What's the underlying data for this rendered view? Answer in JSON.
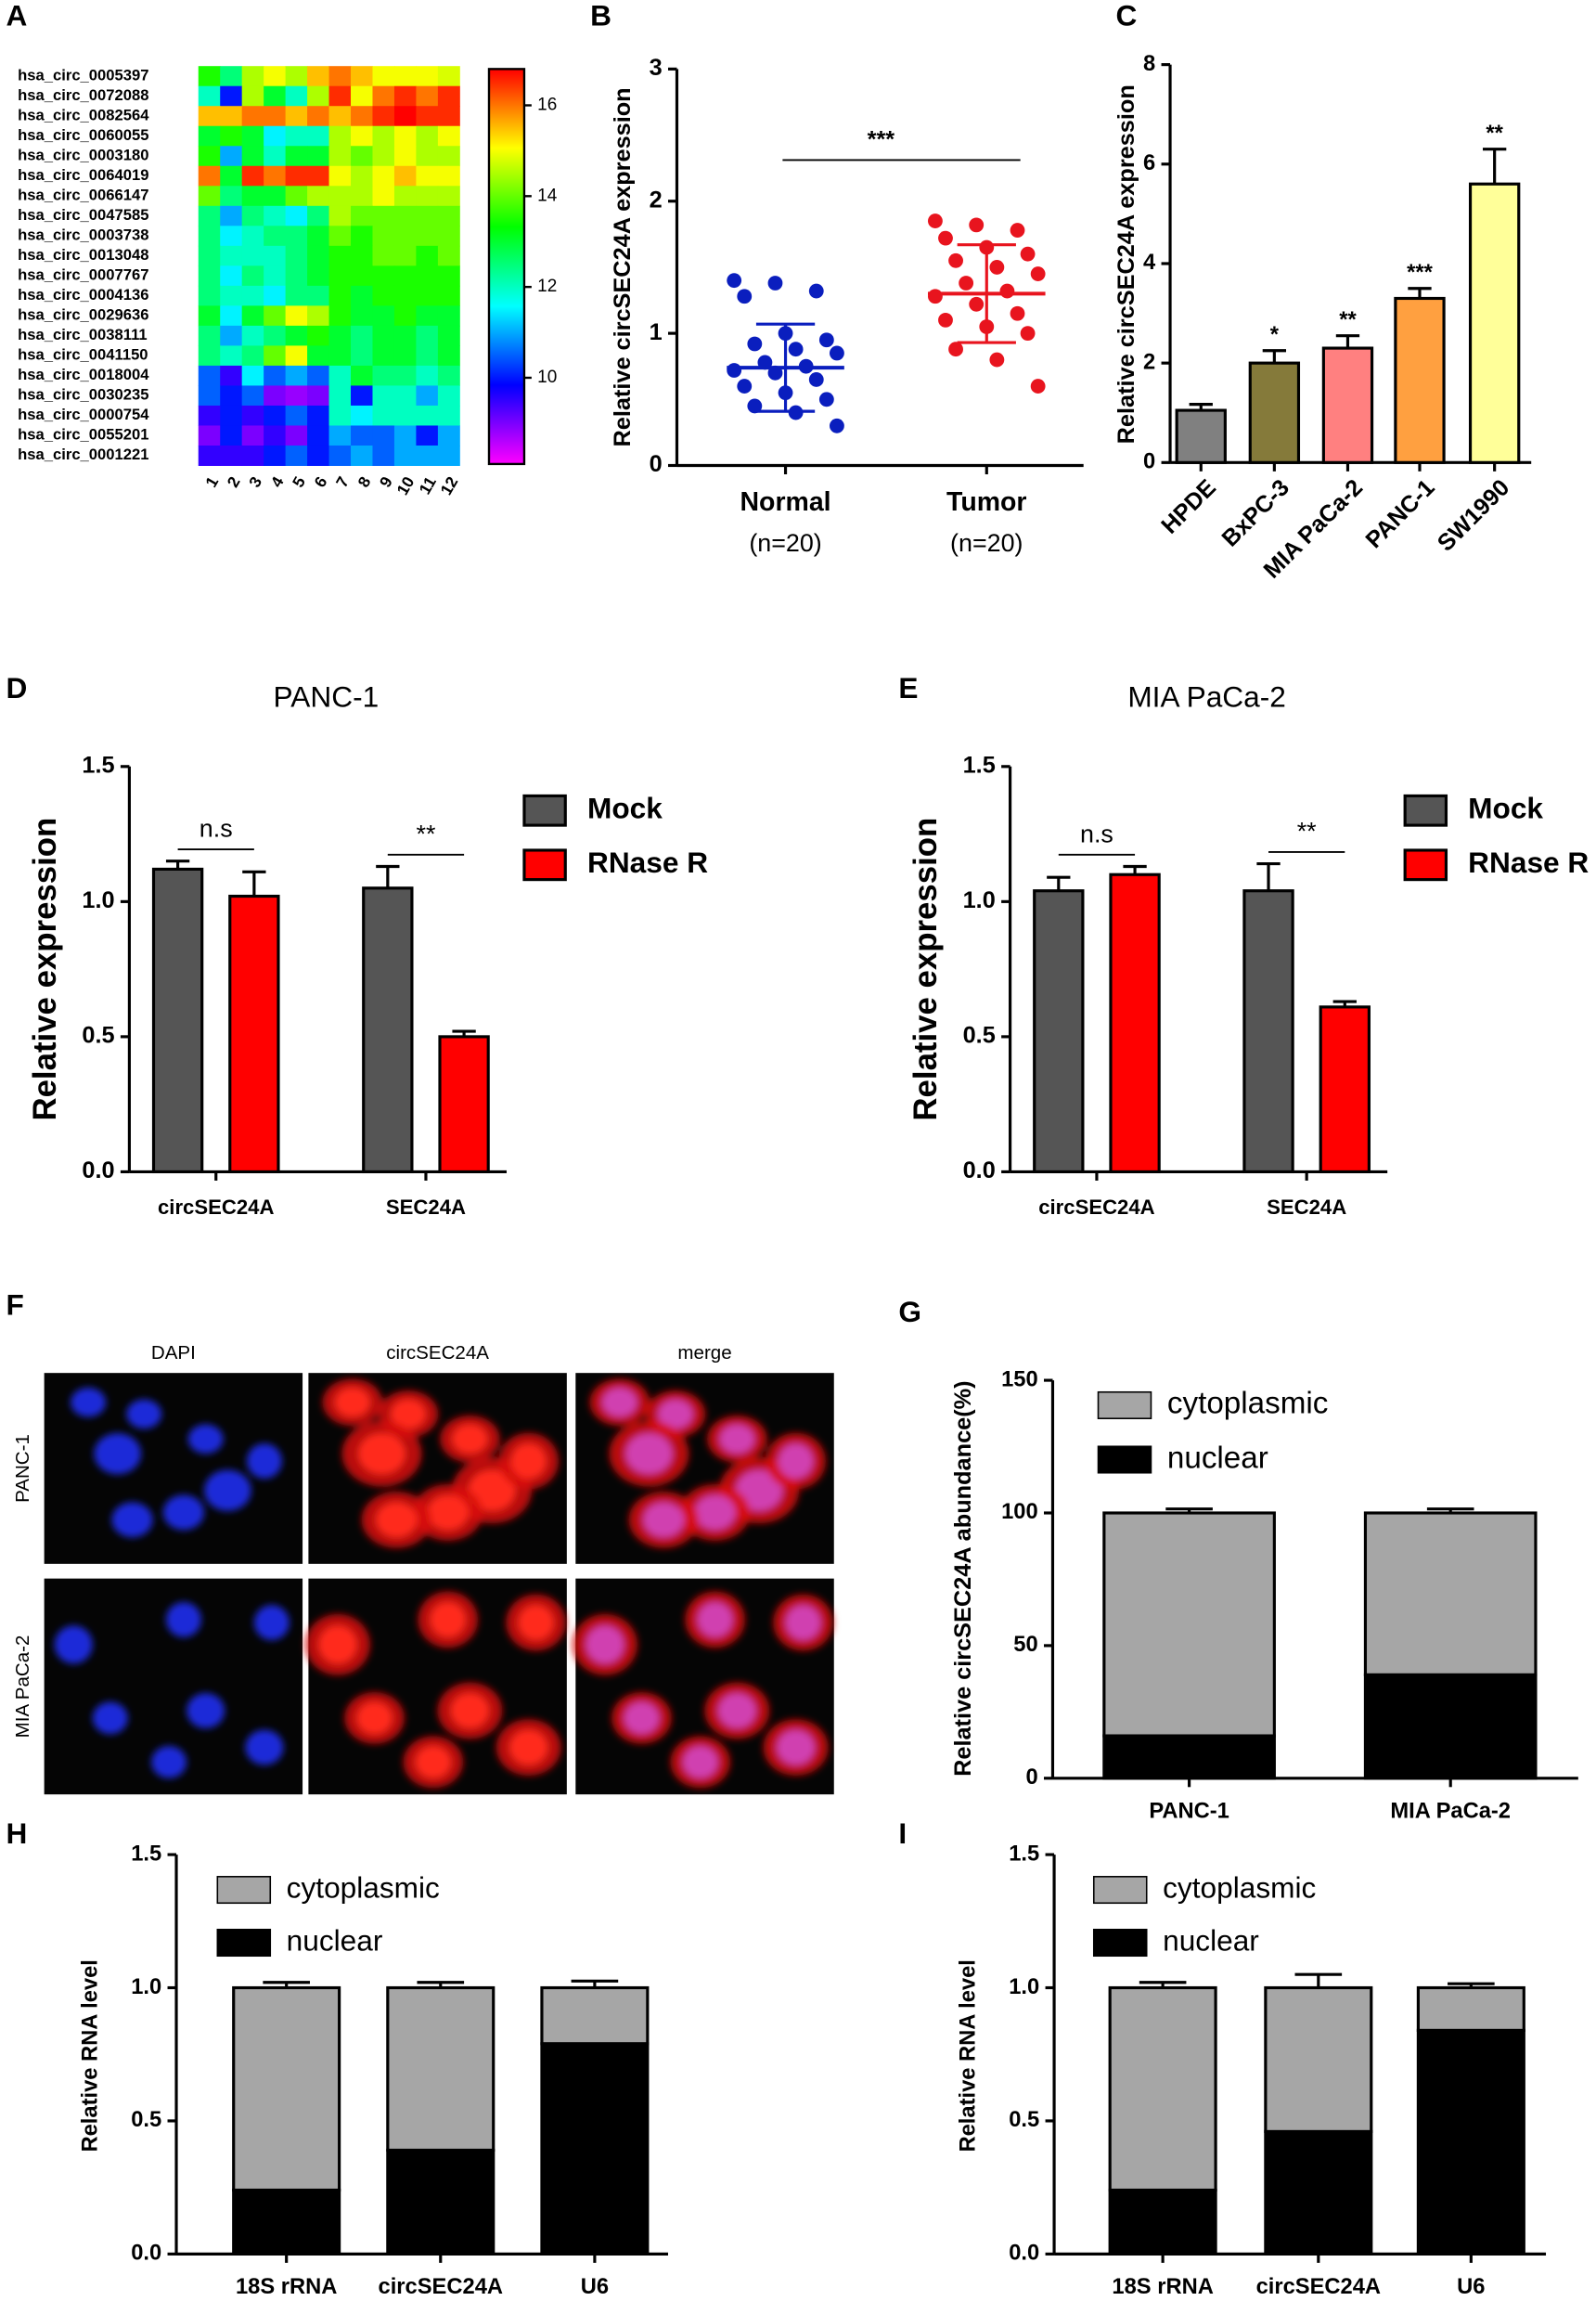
{
  "chart_data": [
    {
      "type": "heatmap",
      "panel": "A",
      "rows": [
        "hsa_circ_0005397",
        "hsa_circ_0072088",
        "hsa_circ_0082564",
        "hsa_circ_0060055",
        "hsa_circ_0003180",
        "hsa_circ_0064019",
        "hsa_circ_0066147",
        "hsa_circ_0047585",
        "hsa_circ_0003738",
        "hsa_circ_0013048",
        "hsa_circ_0007767",
        "hsa_circ_0004136",
        "hsa_circ_0029636",
        "hsa_circ_0038111",
        "hsa_circ_0041150",
        "hsa_circ_0018004",
        "hsa_circ_0030235",
        "hsa_circ_0000754",
        "hsa_circ_0055201",
        "hsa_circ_0001221"
      ],
      "columns": [
        "1",
        "2",
        "3",
        "4",
        "5",
        "6",
        "7",
        "8",
        "9",
        "10",
        "11",
        "12"
      ],
      "values": [
        [
          13.5,
          12.5,
          14.5,
          15,
          14.5,
          15.5,
          16,
          15.5,
          15,
          15,
          15,
          14.8
        ],
        [
          12,
          10,
          14.5,
          13,
          12,
          14.5,
          16.5,
          15,
          16,
          16.5,
          16,
          16.5
        ],
        [
          15.5,
          15.5,
          16,
          16,
          15.5,
          16,
          15.5,
          16,
          16.5,
          16.8,
          16.5,
          16.5
        ],
        [
          13,
          13.5,
          13,
          11.5,
          12,
          12,
          14.5,
          15,
          14.5,
          15,
          14.5,
          15
        ],
        [
          13.5,
          11,
          13,
          12,
          13,
          13,
          14.5,
          14,
          14.5,
          15,
          14.5,
          14.5
        ],
        [
          16,
          13,
          16.5,
          16,
          16.5,
          16.5,
          15,
          14.5,
          15,
          15.5,
          15,
          15
        ],
        [
          14,
          12.5,
          13,
          13,
          14,
          14.5,
          14.5,
          14.5,
          15,
          14.5,
          14.5,
          14.5
        ],
        [
          12.5,
          11,
          12.5,
          12,
          11.5,
          12.5,
          14.5,
          14,
          14,
          14,
          14,
          14
        ],
        [
          12.5,
          11.5,
          12,
          12.5,
          12.5,
          13,
          14,
          13.5,
          14,
          14,
          14,
          14
        ],
        [
          12.5,
          12,
          12,
          12,
          12.5,
          13,
          13.5,
          13.5,
          14,
          14,
          13.5,
          14
        ],
        [
          12.5,
          11.5,
          12.5,
          12,
          12.5,
          13,
          13.5,
          13.5,
          13.5,
          13.5,
          13.5,
          13.5
        ],
        [
          12.5,
          12,
          12,
          11.5,
          12.5,
          12.5,
          13.5,
          13,
          13.5,
          13.5,
          13.5,
          13.5
        ],
        [
          13,
          11.5,
          13,
          14,
          15,
          14.5,
          13.5,
          13,
          13,
          13.5,
          13,
          13
        ],
        [
          12.5,
          11,
          12,
          12.5,
          13,
          13.5,
          13,
          12.5,
          13,
          13,
          12.5,
          13
        ],
        [
          12.5,
          12,
          12.5,
          14,
          15,
          13,
          13,
          12.5,
          13,
          13,
          12.5,
          13
        ],
        [
          10.5,
          9.5,
          11.5,
          10.5,
          11,
          10.5,
          12,
          13,
          12.5,
          12.5,
          12,
          12.5
        ],
        [
          10.5,
          10,
          10.5,
          9,
          8.8,
          9,
          12,
          10,
          12,
          12,
          11,
          12
        ],
        [
          9.5,
          10,
          9.5,
          10,
          10.5,
          10,
          12,
          11.5,
          12,
          12,
          12,
          12
        ],
        [
          9,
          10,
          9,
          9.5,
          9,
          10,
          11,
          10.5,
          10.5,
          11,
          10,
          11
        ],
        [
          9.5,
          9.5,
          9.5,
          10,
          10.5,
          10,
          10.5,
          11,
          10.5,
          11,
          11,
          11
        ]
      ],
      "colormap": [
        "#ff00ff",
        "#0000ff",
        "#00ffff",
        "#00ff00",
        "#ffff00",
        "#ff0000"
      ],
      "zlim": [
        8.1,
        16.8
      ],
      "zticks": [
        10,
        12,
        14,
        16
      ]
    },
    {
      "type": "scatter",
      "panel": "B",
      "ylabel": "Relative circSEC24A expression",
      "categories": [
        "Normal",
        "Tumor"
      ],
      "category_notes": [
        "(n=20)",
        "(n=20)"
      ],
      "series": [
        {
          "color": "#0a1ebe",
          "values": [
            1.4,
            1.38,
            1.32,
            1.28,
            1.0,
            0.95,
            0.92,
            0.88,
            0.85,
            0.78,
            0.75,
            0.72,
            0.7,
            0.65,
            0.6,
            0.55,
            0.5,
            0.45,
            0.4,
            0.3
          ],
          "mean": 0.74,
          "sd": 0.33
        },
        {
          "color": "#e8141e",
          "values": [
            1.85,
            1.82,
            1.78,
            1.72,
            1.65,
            1.6,
            1.55,
            1.5,
            1.45,
            1.38,
            1.32,
            1.28,
            1.22,
            1.15,
            1.1,
            1.05,
            1.0,
            0.88,
            0.8,
            0.6
          ],
          "mean": 1.3,
          "sd": 0.37
        }
      ],
      "annotation": "***",
      "ylim": [
        0,
        3
      ],
      "yticks": [
        0,
        1,
        2,
        3
      ]
    },
    {
      "type": "bar",
      "panel": "C",
      "ylabel": "Relative circSEC24A expression",
      "categories": [
        "HPDE",
        "BxPC-3",
        "MIA PaCa-2",
        "PANC-1",
        "SW1990"
      ],
      "values": [
        1.05,
        2.0,
        2.3,
        3.3,
        5.6
      ],
      "errors": [
        0.12,
        0.25,
        0.25,
        0.2,
        0.7
      ],
      "colors": [
        "#808080",
        "#857a3a",
        "#ff8080",
        "#ffa040",
        "#ffff99"
      ],
      "annotations": [
        null,
        "*",
        "**",
        "***",
        "**"
      ],
      "ylim": [
        0,
        8
      ],
      "yticks": [
        0,
        2,
        4,
        6,
        8
      ]
    },
    {
      "type": "grouped_bar",
      "panel": "D",
      "title": "PANC-1",
      "ylabel": "Relative expression",
      "categories": [
        "circSEC24A",
        "SEC24A"
      ],
      "series": [
        {
          "name": "Mock",
          "color": "#555555",
          "values": [
            1.12,
            1.05
          ],
          "errors": [
            0.03,
            0.08
          ]
        },
        {
          "name": "RNase R",
          "color": "#ff0000",
          "values": [
            1.02,
            0.5
          ],
          "errors": [
            0.09,
            0.02
          ]
        }
      ],
      "annotations": [
        "n.s",
        "**"
      ],
      "ylim": [
        0,
        1.5
      ],
      "yticks": [
        {
          "value": 0,
          "label": "0.0"
        },
        0.5,
        {
          "value": 1,
          "label": "1.0"
        },
        1.5
      ]
    },
    {
      "type": "grouped_bar",
      "panel": "E",
      "title": "MIA PaCa-2",
      "ylabel": "Relative expression",
      "categories": [
        "circSEC24A",
        "SEC24A"
      ],
      "series": [
        {
          "name": "Mock",
          "color": "#555555",
          "values": [
            1.04,
            1.04
          ],
          "errors": [
            0.05,
            0.1
          ]
        },
        {
          "name": "RNase R",
          "color": "#ff0000",
          "values": [
            1.1,
            0.61
          ],
          "errors": [
            0.03,
            0.02
          ]
        }
      ],
      "annotations": [
        "n.s",
        "**"
      ],
      "ylim": [
        0,
        1.5
      ],
      "yticks": [
        {
          "value": 0,
          "label": "0.0"
        },
        0.5,
        {
          "value": 1,
          "label": "1.0"
        },
        1.5
      ]
    },
    {
      "type": "image_grid",
      "panel": "F",
      "columns": [
        "DAPI",
        "circSEC24A",
        "merge"
      ],
      "rows": [
        "PANC-1",
        "MIA PaCa-2"
      ]
    },
    {
      "type": "stacked_bar",
      "panel": "G",
      "ylabel": "Relative circSEC24A abundance(%)",
      "categories": [
        "PANC-1",
        "MIA PaCa-2"
      ],
      "series": [
        {
          "name": "cytoplasmic",
          "color": "#a6a6a6",
          "values": [
            84,
            61
          ],
          "errors": [
            1.5,
            1.5
          ]
        },
        {
          "name": "nuclear",
          "color": "#000000",
          "values": [
            16,
            39
          ],
          "errors": [
            2.5,
            2
          ]
        }
      ],
      "ylim": [
        0,
        150
      ],
      "yticks": [
        0,
        50,
        100,
        150
      ]
    },
    {
      "type": "stacked_bar",
      "panel": "H",
      "ylabel": "Relative RNA level",
      "categories": [
        "18S rRNA",
        "circSEC24A",
        "U6"
      ],
      "series": [
        {
          "name": "cytoplasmic",
          "color": "#a6a6a6",
          "values": [
            0.76,
            0.61,
            0.21
          ],
          "errors": [
            0.02,
            0.02,
            0.025
          ]
        },
        {
          "name": "nuclear",
          "color": "#000000",
          "values": [
            0.24,
            0.39,
            0.79
          ],
          "errors": [
            0.015,
            0.015,
            0.02
          ]
        }
      ],
      "ylim": [
        0,
        1.5
      ],
      "yticks": [
        {
          "value": 0,
          "label": "0.0"
        },
        0.5,
        {
          "value": 1,
          "label": "1.0"
        },
        1.5
      ]
    },
    {
      "type": "stacked_bar",
      "panel": "I",
      "ylabel": "Relative RNA level",
      "categories": [
        "18S rRNA",
        "circSEC24A",
        "U6"
      ],
      "series": [
        {
          "name": "cytoplasmic",
          "color": "#a6a6a6",
          "values": [
            0.76,
            0.54,
            0.16
          ],
          "errors": [
            0.02,
            0.05,
            0.015
          ]
        },
        {
          "name": "nuclear",
          "color": "#000000",
          "values": [
            0.24,
            0.46,
            0.84
          ],
          "errors": [
            0.015,
            0.045,
            0.01
          ]
        }
      ],
      "ylim": [
        0,
        1.5
      ],
      "yticks": [
        {
          "value": 0,
          "label": "0.0"
        },
        0.5,
        {
          "value": 1,
          "label": "1.0"
        },
        1.5
      ]
    }
  ]
}
